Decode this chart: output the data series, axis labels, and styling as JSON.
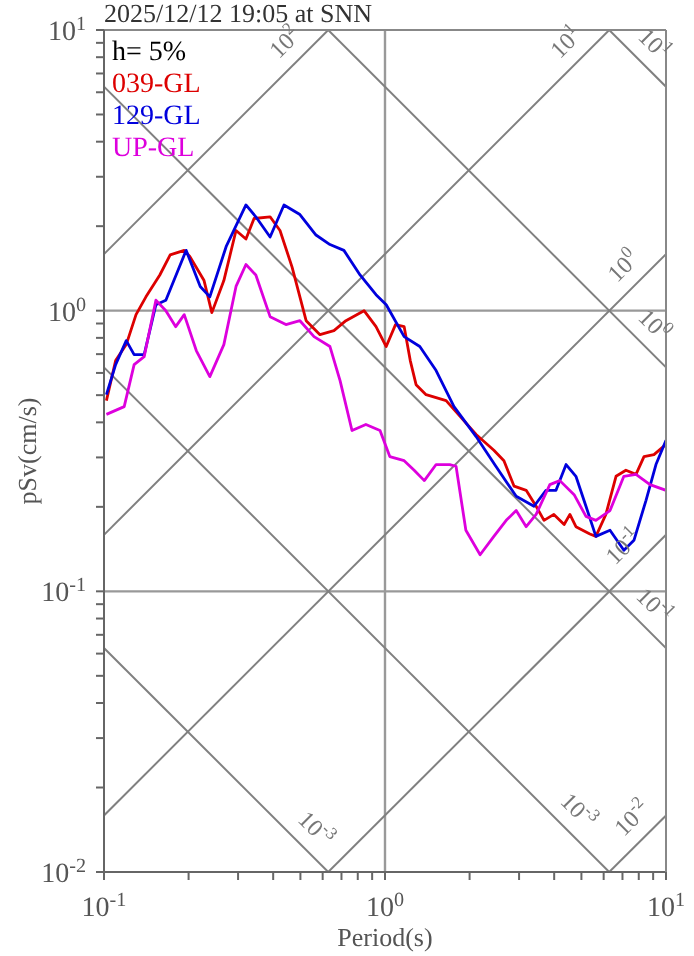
{
  "chart_data": {
    "type": "line",
    "title": "2025/12/12 19:05 at SNN",
    "xlabel": "Period(s)",
    "ylabel": "pSv(cm/s)",
    "legend_title": "h= 5%",
    "legend": "top left",
    "log": "xy",
    "grid": true,
    "xlim": [
      0.1,
      10
    ],
    "ylim": [
      0.01,
      10
    ],
    "xticks": [
      {
        "value": 0.1,
        "label": "10$^{-1}$"
      },
      {
        "value": 0.2,
        "label": null
      },
      {
        "value": 0.3,
        "label": null
      },
      {
        "value": 0.4,
        "label": null
      },
      {
        "value": 0.5,
        "label": null
      },
      {
        "value": 0.6,
        "label": null
      },
      {
        "value": 0.7,
        "label": null
      },
      {
        "value": 0.8,
        "label": null
      },
      {
        "value": 0.9,
        "label": null
      },
      {
        "value": 1,
        "label": "10$^{0}$"
      },
      {
        "value": 2,
        "label": null
      },
      {
        "value": 3,
        "label": null
      },
      {
        "value": 4,
        "label": null
      },
      {
        "value": 5,
        "label": null
      },
      {
        "value": 6,
        "label": null
      },
      {
        "value": 7,
        "label": null
      },
      {
        "value": 8,
        "label": null
      },
      {
        "value": 9,
        "label": null
      },
      {
        "value": 10,
        "label": "10$^{1}$"
      }
    ],
    "yticks": [
      {
        "value": 0.01,
        "label": "10$^{-2}$"
      },
      {
        "value": 0.02,
        "label": null
      },
      {
        "value": 0.03,
        "label": null
      },
      {
        "value": 0.04,
        "label": null
      },
      {
        "value": 0.05,
        "label": null
      },
      {
        "value": 0.06,
        "label": null
      },
      {
        "value": 0.07,
        "label": null
      },
      {
        "value": 0.08,
        "label": null
      },
      {
        "value": 0.09,
        "label": null
      },
      {
        "value": 0.1,
        "label": "10$^{-1}$"
      },
      {
        "value": 0.2,
        "label": null
      },
      {
        "value": 0.3,
        "label": null
      },
      {
        "value": 0.4,
        "label": null
      },
      {
        "value": 0.5,
        "label": null
      },
      {
        "value": 0.6,
        "label": null
      },
      {
        "value": 0.7,
        "label": null
      },
      {
        "value": 0.8,
        "label": null
      },
      {
        "value": 0.9,
        "label": null
      },
      {
        "value": 1,
        "label": "10$^{0}$"
      },
      {
        "value": 2,
        "label": null
      },
      {
        "value": 3,
        "label": null
      },
      {
        "value": 4,
        "label": null
      },
      {
        "value": 5,
        "label": null
      },
      {
        "value": 6,
        "label": null
      },
      {
        "value": 7,
        "label": null
      },
      {
        "value": 8,
        "label": null
      },
      {
        "value": 9,
        "label": null
      },
      {
        "value": 10,
        "label": "10$^{1}$"
      }
    ],
    "series": [
      {
        "color": "#808080",
        "x": [
          0.1,
          0.628
        ],
        "values": [
          1.59,
          10
        ]
      },
      {
        "color": "#808080",
        "x": [
          0.1,
          6.28
        ],
        "values": [
          0.159,
          10
        ]
      },
      {
        "color": "#808080",
        "x": [
          0.1,
          10
        ],
        "values": [
          0.0159,
          1.59
        ]
      },
      {
        "color": "#808080",
        "x": [
          0.628,
          10
        ],
        "values": [
          0.01,
          0.159
        ]
      },
      {
        "color": "#808080",
        "x": [
          6.28,
          10
        ],
        "values": [
          0.01,
          0.0159
        ]
      },
      {
        "color": "#808080",
        "x": [
          6.28,
          10
        ],
        "values": [
          10,
          6.28
        ]
      },
      {
        "color": "#808080",
        "x": [
          0.628,
          10
        ],
        "values": [
          10,
          0.628
        ]
      },
      {
        "color": "#808080",
        "x": [
          0.1,
          10
        ],
        "values": [
          6.28,
          0.0628
        ]
      },
      {
        "color": "#808080",
        "x": [
          0.1,
          6.28
        ],
        "values": [
          0.628,
          0.01
        ]
      },
      {
        "color": "#808080",
        "x": [
          0.1,
          0.628
        ],
        "values": [
          0.0628,
          0.01
        ]
      },
      {
        "name": "039-GL",
        "color": "#dd0000",
        "x": [
          0.102,
          0.11,
          0.12,
          0.13,
          0.141,
          0.158,
          0.172,
          0.193,
          0.202,
          0.227,
          0.242,
          0.267,
          0.295,
          0.32,
          0.342,
          0.39,
          0.423,
          0.467,
          0.524,
          0.587,
          0.658,
          0.726,
          0.842,
          0.929,
          1.01,
          1.09,
          1.17,
          1.23,
          1.29,
          1.4,
          1.65,
          1.85,
          2.11,
          2.44,
          2.65,
          2.88,
          3.18,
          3.45,
          3.68,
          3.99,
          4.34,
          4.55,
          4.78,
          5.36,
          5.63,
          6.11,
          6.64,
          7.2,
          7.82,
          8.35,
          9.06,
          10
        ],
        "values": [
          0.478,
          0.664,
          0.757,
          0.968,
          1.12,
          1.34,
          1.58,
          1.64,
          1.56,
          1.28,
          0.984,
          1.28,
          1.93,
          1.8,
          2.13,
          2.16,
          1.93,
          1.43,
          0.921,
          0.821,
          0.849,
          0.921,
          1.0,
          0.877,
          0.745,
          0.892,
          0.877,
          0.664,
          0.545,
          0.502,
          0.478,
          0.42,
          0.362,
          0.318,
          0.292,
          0.237,
          0.229,
          0.201,
          0.179,
          0.188,
          0.173,
          0.188,
          0.17,
          0.16,
          0.157,
          0.188,
          0.257,
          0.27,
          0.261,
          0.302,
          0.307,
          0.334
        ]
      },
      {
        "name": "129-GL",
        "color": "#0000dd",
        "x": [
          0.102,
          0.11,
          0.12,
          0.128,
          0.139,
          0.153,
          0.166,
          0.196,
          0.22,
          0.238,
          0.272,
          0.32,
          0.347,
          0.39,
          0.437,
          0.498,
          0.568,
          0.637,
          0.714,
          0.815,
          0.929,
          1.01,
          1.17,
          1.33,
          1.52,
          1.76,
          2.11,
          2.48,
          2.93,
          3.39,
          3.74,
          4.06,
          4.41,
          4.78,
          5.19,
          5.63,
          6.32,
          7.08,
          7.69,
          8.49,
          9.21,
          10
        ],
        "values": [
          0.502,
          0.642,
          0.782,
          0.697,
          0.697,
          1.05,
          1.09,
          1.64,
          1.22,
          1.12,
          1.69,
          2.38,
          2.16,
          1.83,
          2.38,
          2.2,
          1.86,
          1.72,
          1.64,
          1.34,
          1.14,
          1.05,
          0.808,
          0.745,
          0.612,
          0.455,
          0.356,
          0.279,
          0.218,
          0.201,
          0.229,
          0.229,
          0.283,
          0.257,
          0.201,
          0.157,
          0.165,
          0.14,
          0.152,
          0.211,
          0.283,
          0.345
        ]
      },
      {
        "name": "UP-GL",
        "color": "#dd00dd",
        "x": [
          0.102,
          0.118,
          0.128,
          0.139,
          0.153,
          0.166,
          0.18,
          0.193,
          0.213,
          0.238,
          0.267,
          0.295,
          0.32,
          0.347,
          0.39,
          0.444,
          0.498,
          0.559,
          0.637,
          0.692,
          0.763,
          0.855,
          0.96,
          1.04,
          1.17,
          1.27,
          1.38,
          1.52,
          1.7,
          1.79,
          1.94,
          2.18,
          2.44,
          2.7,
          2.93,
          3.18,
          3.45,
          3.86,
          4.19,
          4.71,
          5.19,
          5.63,
          6.32,
          7.08,
          7.82,
          8.77,
          10
        ],
        "values": [
          0.427,
          0.455,
          0.642,
          0.686,
          1.09,
          1.0,
          0.877,
          0.968,
          0.721,
          0.582,
          0.757,
          1.22,
          1.46,
          1.34,
          0.952,
          0.892,
          0.921,
          0.808,
          0.745,
          0.563,
          0.374,
          0.393,
          0.374,
          0.302,
          0.292,
          0.27,
          0.248,
          0.283,
          0.283,
          0.279,
          0.165,
          0.135,
          0.157,
          0.179,
          0.194,
          0.17,
          0.188,
          0.24,
          0.248,
          0.221,
          0.185,
          0.179,
          0.194,
          0.257,
          0.261,
          0.24,
          0.229
        ]
      }
    ],
    "annotations": [
      {
        "text": "10$^{2}$",
        "x": 0.5,
        "y": 7.96
      },
      {
        "text": "10$^{1}$",
        "x": 5,
        "y": 7.96
      },
      {
        "text": "10$^{0}$",
        "x": 8,
        "y": 1.27
      },
      {
        "text": "10$^{-1}$",
        "x": 8,
        "y": 0.127
      },
      {
        "text": "10$^{-2}$",
        "x": 8.6,
        "y": 0.0137
      },
      {
        "text": "10$^{1}$",
        "x": 8,
        "y": 7.85
      },
      {
        "text": "10$^{0}$",
        "x": 8,
        "y": 0.785
      },
      {
        "text": "10$^{-1}$",
        "x": 8,
        "y": 0.0785
      },
      {
        "text": "10$^{-3}$",
        "x": 4.3,
        "y": 0.0146
      },
      {
        "text": "10$^{-3}$",
        "x": 0.5,
        "y": 0.01257
      }
    ]
  }
}
